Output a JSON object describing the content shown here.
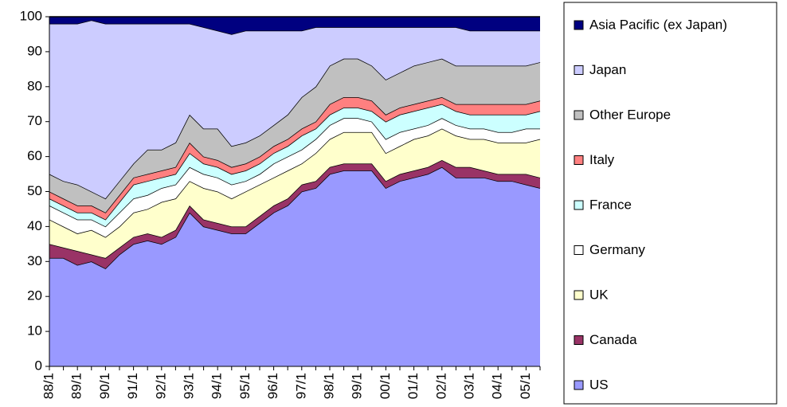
{
  "chart_data": {
    "type": "stacked_area",
    "categories": [
      "88/1",
      null,
      "89/1",
      null,
      "90/1",
      null,
      "91/1",
      null,
      "92/1",
      null,
      "93/1",
      null,
      "94/1",
      null,
      "95/1",
      null,
      "96/1",
      null,
      "97/1",
      null,
      "98/1",
      null,
      "99/1",
      null,
      "00/1",
      null,
      "01/1",
      null,
      "02/1",
      null,
      "03/1",
      null,
      "04/1",
      null,
      "05/1",
      null
    ],
    "series": [
      {
        "name": "US",
        "color": "#9999ff",
        "values": [
          31,
          31,
          29,
          30,
          28,
          32,
          35,
          36,
          35,
          37,
          44,
          40,
          39,
          38,
          38,
          41,
          44,
          46,
          50,
          51,
          55,
          56,
          56,
          56,
          51,
          53,
          54,
          55,
          57,
          54,
          54,
          54,
          53,
          53,
          52,
          51
        ]
      },
      {
        "name": "Canada",
        "color": "#993366",
        "values": [
          4,
          3,
          4,
          2,
          3,
          2,
          2,
          2,
          2,
          2,
          2,
          2,
          2,
          2,
          2,
          2,
          2,
          2,
          2,
          2,
          2,
          2,
          2,
          2,
          2,
          2,
          2,
          2,
          2,
          3,
          3,
          2,
          2,
          2,
          3,
          3
        ]
      },
      {
        "name": "UK",
        "color": "#ffffcc",
        "values": [
          7,
          6,
          5,
          7,
          6,
          6,
          7,
          7,
          10,
          9,
          7,
          9,
          9,
          8,
          10,
          9,
          8,
          8,
          6,
          8,
          8,
          9,
          9,
          9,
          8,
          8,
          9,
          9,
          9,
          9,
          8,
          9,
          9,
          9,
          9,
          11
        ]
      },
      {
        "name": "Germany",
        "color": "#ffffff",
        "values": [
          4,
          4,
          4,
          3,
          3,
          4,
          4,
          4,
          4,
          4,
          4,
          4,
          4,
          4,
          3,
          3,
          4,
          4,
          4,
          4,
          4,
          4,
          4,
          3,
          4,
          4,
          3,
          3,
          3,
          3,
          3,
          3,
          3,
          3,
          4,
          3
        ]
      },
      {
        "name": "France",
        "color": "#ccffff",
        "values": [
          2,
          2,
          2,
          2,
          2,
          3,
          4,
          4,
          3,
          3,
          4,
          3,
          3,
          3,
          3,
          3,
          3,
          3,
          4,
          3,
          3,
          3,
          3,
          3,
          5,
          5,
          5,
          5,
          4,
          4,
          4,
          4,
          5,
          5,
          4,
          5
        ]
      },
      {
        "name": "Italy",
        "color": "#ff8080",
        "values": [
          2,
          2,
          2,
          2,
          2,
          2,
          2,
          2,
          2,
          2,
          3,
          2,
          2,
          2,
          2,
          2,
          2,
          2,
          2,
          2,
          3,
          3,
          3,
          3,
          2,
          2,
          2,
          2,
          2,
          2,
          3,
          3,
          3,
          3,
          3,
          3
        ]
      },
      {
        "name": "Other Europe",
        "color": "#c0c0c0",
        "values": [
          5,
          5,
          6,
          4,
          4,
          4,
          4,
          7,
          6,
          7,
          8,
          8,
          9,
          6,
          6,
          6,
          6,
          7,
          9,
          10,
          11,
          11,
          11,
          10,
          10,
          10,
          11,
          11,
          11,
          11,
          11,
          11,
          11,
          11,
          11,
          11
        ]
      },
      {
        "name": "Japan",
        "color": "#ccccff",
        "values": [
          43,
          45,
          46,
          49,
          50,
          45,
          40,
          36,
          36,
          34,
          26,
          29,
          28,
          32,
          32,
          30,
          27,
          24,
          19,
          17,
          11,
          9,
          9,
          11,
          15,
          13,
          11,
          10,
          9,
          11,
          10,
          10,
          10,
          10,
          10,
          9
        ]
      },
      {
        "name": "Asia Pacific (ex Japan)",
        "color": "#000080",
        "values": [
          2,
          2,
          2,
          1,
          2,
          2,
          2,
          2,
          2,
          2,
          2,
          3,
          4,
          5,
          4,
          4,
          4,
          4,
          4,
          3,
          3,
          3,
          3,
          3,
          3,
          3,
          3,
          3,
          3,
          3,
          4,
          4,
          4,
          4,
          4,
          4
        ]
      }
    ],
    "ylim": [
      0,
      100
    ],
    "yticks": [
      0,
      10,
      20,
      30,
      40,
      50,
      60,
      70,
      80,
      90,
      100
    ],
    "grid": false,
    "legend": "right"
  }
}
